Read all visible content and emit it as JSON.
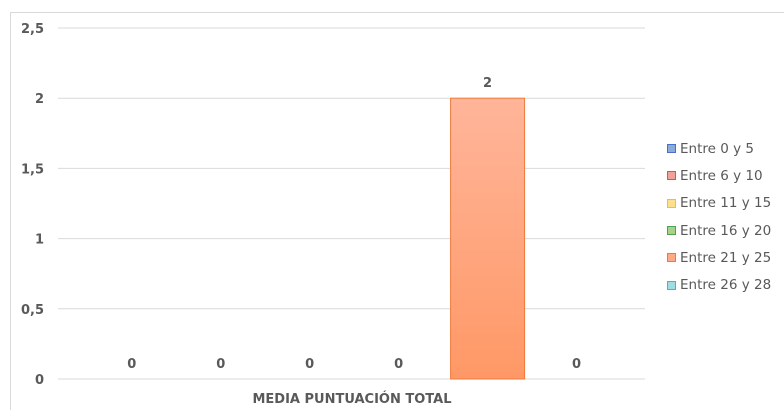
{
  "chart_data": {
    "type": "bar",
    "categories": [
      "MEDIA PUNTUACIÓN TOTAL"
    ],
    "series": [
      {
        "name": "Entre 0 y 5",
        "values": [
          0
        ],
        "color": "#8eaadb",
        "border": "#4472c4"
      },
      {
        "name": "Entre 6 y 10",
        "values": [
          0
        ],
        "color": "#f4a09a",
        "border": "#e0534a"
      },
      {
        "name": "Entre 11 y 15",
        "values": [
          0
        ],
        "color": "#ffe08a",
        "border": "#f0c030"
      },
      {
        "name": "Entre 16 y 20",
        "values": [
          0
        ],
        "color": "#a9d18e",
        "border": "#4ea24e"
      },
      {
        "name": "Entre 21 y 25",
        "values": [
          2
        ],
        "color": "#ffaa85",
        "border": "#f07a3c"
      },
      {
        "name": "Entre 26 y 28",
        "values": [
          0
        ],
        "color": "#9fdde3",
        "border": "#45b5c4"
      }
    ],
    "data_labels": [
      "0",
      "0",
      "0",
      "0",
      "2",
      "0"
    ],
    "y_ticks": [
      "0",
      "0,5",
      "1",
      "1,5",
      "2",
      "2,5"
    ],
    "ylim": [
      0,
      2.5
    ],
    "xlabel": "MEDIA PUNTUACIÓN TOTAL",
    "ylabel": "",
    "title": "",
    "grid": true,
    "legend_position": "right"
  }
}
